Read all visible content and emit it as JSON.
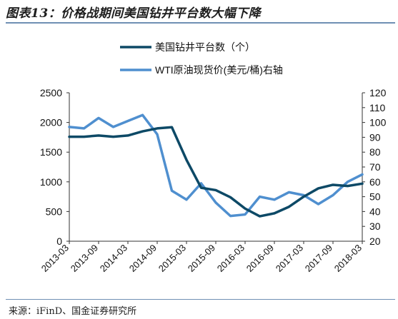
{
  "title": "图表13：价格战期间美国钻井平台数大幅下降",
  "source": "来源：iFinD、国金证券研究所",
  "colors": {
    "rig_count": "#0d4966",
    "wti": "#4f8fcf",
    "axis": "#333333",
    "rule": "#6f8fb3"
  },
  "chart_data": {
    "type": "line",
    "x": [
      "2013-03",
      "2013-06",
      "2013-09",
      "2013-12",
      "2014-03",
      "2014-06",
      "2014-09",
      "2014-12",
      "2015-03",
      "2015-06",
      "2015-09",
      "2015-12",
      "2016-03",
      "2016-06",
      "2016-09",
      "2016-12",
      "2017-03",
      "2017-06",
      "2017-09",
      "2017-12",
      "2018-03"
    ],
    "x_tick_labels": [
      "2013-03",
      "2013-09",
      "2014-03",
      "2014-09",
      "2015-03",
      "2015-09",
      "2016-03",
      "2016-09",
      "2017-03",
      "2017-09",
      "2018-03"
    ],
    "series": [
      {
        "name": "美国钻井平台数（个）",
        "axis": "left",
        "values": [
          1760,
          1760,
          1780,
          1760,
          1780,
          1850,
          1900,
          1920,
          1370,
          900,
          860,
          740,
          550,
          420,
          470,
          580,
          750,
          890,
          950,
          930,
          970
        ]
      },
      {
        "name": "WTI原油现货价(美元/桶)右轴",
        "axis": "right",
        "values": [
          97,
          96,
          103,
          97,
          101,
          105,
          92,
          54,
          48,
          59,
          46,
          37,
          38,
          50,
          48,
          53,
          51,
          45,
          51,
          60,
          65
        ]
      }
    ],
    "y_left": {
      "ticks": [
        0,
        500,
        1000,
        1500,
        2000,
        2500
      ],
      "ylim": [
        0,
        2500
      ]
    },
    "y_right": {
      "ticks": [
        20,
        30,
        40,
        50,
        60,
        70,
        80,
        90,
        100,
        110,
        120
      ],
      "ylim": [
        20,
        120
      ]
    },
    "legend_position": "top-center",
    "grid": false
  }
}
